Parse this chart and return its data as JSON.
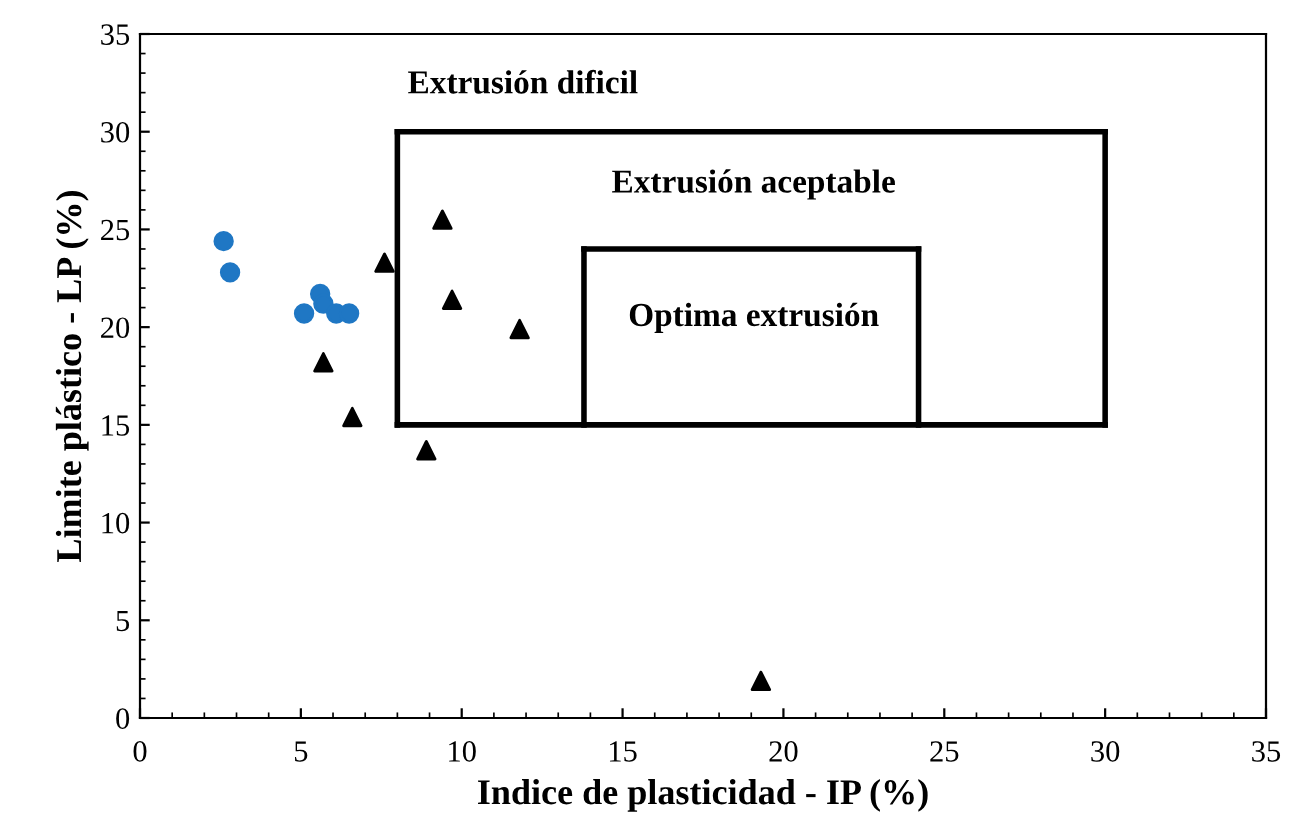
{
  "chart_data": {
    "type": "scatter",
    "xlabel": "Indice de plasticidad - IP (%)",
    "ylabel": "Limite plástico - LP (%)",
    "xlim": [
      0,
      35
    ],
    "ylim": [
      0,
      35
    ],
    "xticks": [
      0,
      5,
      10,
      15,
      20,
      25,
      30,
      35
    ],
    "yticks": [
      0,
      5,
      10,
      15,
      20,
      25,
      30,
      35
    ],
    "grid": false,
    "legend": false,
    "series": [
      {
        "marker": "circle",
        "color": "#1f77c4",
        "x": [
          2.6,
          2.8,
          5.1,
          5.6,
          5.7,
          6.1,
          6.5
        ],
        "values": [
          24.4,
          22.8,
          20.7,
          21.7,
          21.2,
          20.7,
          20.7
        ]
      },
      {
        "marker": "triangle",
        "color": "#000000",
        "x": [
          7.6,
          5.7,
          6.6,
          8.9,
          9.4,
          9.7,
          11.8,
          19.3
        ],
        "values": [
          23.3,
          18.2,
          15.4,
          13.7,
          25.5,
          21.4,
          19.9,
          1.9
        ]
      },
      {
        "type": "line",
        "marker": "none",
        "color": "#000000",
        "x": [
          8,
          30
        ],
        "values": [
          15,
          15
        ]
      },
      {
        "type": "line",
        "marker": "none",
        "color": "#000000",
        "x": [
          8,
          30
        ],
        "values": [
          30,
          30
        ]
      },
      {
        "type": "line",
        "marker": "none",
        "color": "#000000",
        "x": [
          8,
          8
        ],
        "values": [
          15,
          30
        ]
      },
      {
        "type": "line",
        "marker": "none",
        "color": "#000000",
        "x": [
          30,
          30
        ],
        "values": [
          15,
          30
        ]
      },
      {
        "type": "line",
        "marker": "none",
        "color": "#000000",
        "x": [
          13.8,
          24.2
        ],
        "values": [
          24,
          24
        ]
      },
      {
        "type": "line",
        "marker": "none",
        "color": "#000000",
        "x": [
          13.8,
          13.8
        ],
        "values": [
          15,
          24
        ]
      },
      {
        "type": "line",
        "marker": "none",
        "color": "#000000",
        "x": [
          24.2,
          24.2
        ],
        "values": [
          15,
          24
        ]
      }
    ],
    "annotations": [
      "Extrusión dificil",
      "Extrusión aceptable",
      "Optima extrusión"
    ]
  }
}
